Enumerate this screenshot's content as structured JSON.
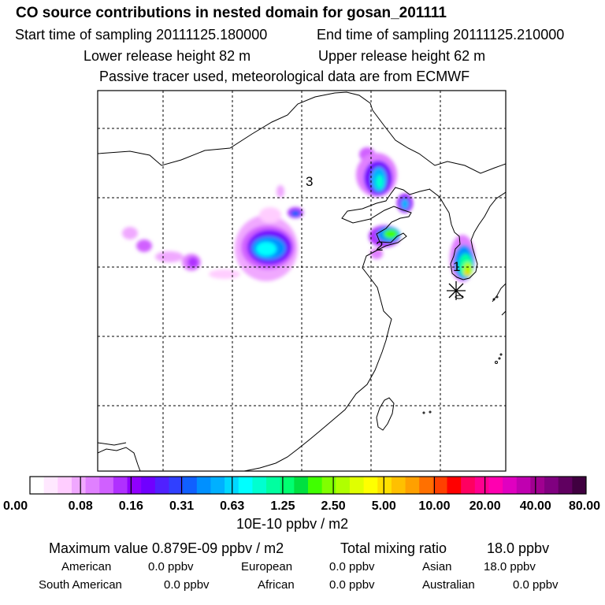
{
  "header": {
    "title": "CO  source contributions in nested domain for gosan_201111",
    "start_label": "Start time of sampling 20111125.180000",
    "end_label": "End time of sampling 20111125.210000",
    "lower_label": "Lower release height   82 m",
    "upper_label": "Upper release height   62 m",
    "tracer_label": "Passive tracer used, meteorological data are from ECMWF"
  },
  "map": {
    "region_labels": [
      "1",
      "2",
      "3"
    ],
    "receptor_marker": "star-icon"
  },
  "colorbar": {
    "colors": [
      "#ffffff",
      "#ffe8ff",
      "#ffcdff",
      "#f0a8ff",
      "#e080ff",
      "#d060ff",
      "#b030ff",
      "#9000ff",
      "#7000ff",
      "#5020ff",
      "#3040ff",
      "#1060ff",
      "#0090ff",
      "#00b0ff",
      "#00d8ff",
      "#00ffff",
      "#00ffd0",
      "#00ffa0",
      "#00ff70",
      "#00e040",
      "#40ff00",
      "#80ff00",
      "#b0ff00",
      "#e0ff00",
      "#ffff00",
      "#ffe000",
      "#ffc000",
      "#ffa000",
      "#ff7000",
      "#ff4000",
      "#ff0000",
      "#ff0060",
      "#ff0090",
      "#ff00b0",
      "#e000c0",
      "#c000b0",
      "#a00090",
      "#800080",
      "#600060",
      "#400040"
    ],
    "ticks": [
      "0.00",
      "0.08",
      "0.16",
      "0.31",
      "0.63",
      "1.25",
      "2.50",
      "5.00",
      "10.00",
      "20.00",
      "40.00",
      "80.00"
    ],
    "unit_label": "10E-10 ppbv / m2"
  },
  "summary": {
    "max_label": "Maximum value  0.879E-09 ppbv / m2",
    "total_label": "Total mixing ratio",
    "total_value": "18.0 ppbv",
    "rows": [
      [
        {
          "name": "American",
          "value": "0.0 ppbv"
        },
        {
          "name": "European",
          "value": "0.0 ppbv"
        },
        {
          "name": "Asian",
          "value": "18.0 ppbv"
        }
      ],
      [
        {
          "name": "South American",
          "value": "0.0 ppbv"
        },
        {
          "name": "African",
          "value": "0.0 ppbv"
        },
        {
          "name": "Australian",
          "value": "0.0 ppbv"
        }
      ]
    ]
  }
}
